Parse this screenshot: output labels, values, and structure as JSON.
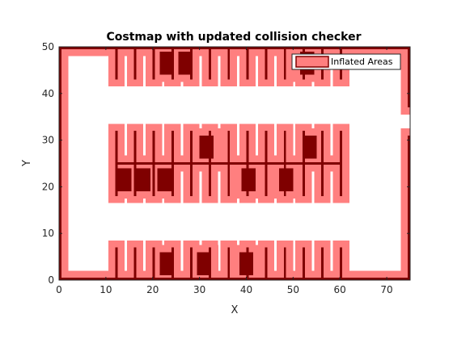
{
  "chart_data": {
    "type": "heatmap",
    "title": "Costmap with updated collision checker",
    "xlabel": "X",
    "ylabel": "Y",
    "xlim": [
      0,
      75
    ],
    "ylim": [
      0,
      50
    ],
    "xticks": [
      0,
      10,
      20,
      30,
      40,
      50,
      60,
      70
    ],
    "yticks": [
      0,
      10,
      20,
      30,
      40,
      50
    ],
    "grid": false,
    "legend": {
      "position": "top-right",
      "entries": [
        "Inflated Areas"
      ]
    },
    "colors": {
      "inflated": "#ff7f7f",
      "occupied": "#7f0000"
    },
    "cell_size": 0.5,
    "occupied_rects": [
      [
        0,
        0,
        75,
        0.5
      ],
      [
        0,
        49.5,
        75,
        50
      ],
      [
        0,
        0,
        0.5,
        17
      ],
      [
        0,
        11,
        0.5,
        50
      ],
      [
        74.5,
        0,
        75,
        31
      ],
      [
        74.5,
        37,
        75,
        50
      ],
      [
        12,
        0,
        12.5,
        7
      ],
      [
        12,
        43,
        12.5,
        50
      ],
      [
        16,
        0,
        16.5,
        7
      ],
      [
        16,
        43,
        16.5,
        50
      ],
      [
        20,
        0,
        20.5,
        7
      ],
      [
        20,
        43,
        20.5,
        50
      ],
      [
        24,
        0,
        24.5,
        7
      ],
      [
        24,
        43,
        24.5,
        50
      ],
      [
        28,
        0,
        28.5,
        7
      ],
      [
        28,
        43,
        28.5,
        50
      ],
      [
        32,
        0,
        32.5,
        7
      ],
      [
        32,
        43,
        32.5,
        50
      ],
      [
        36,
        0,
        36.5,
        7
      ],
      [
        36,
        43,
        36.5,
        50
      ],
      [
        40,
        0,
        40.5,
        7
      ],
      [
        40,
        43,
        40.5,
        50
      ],
      [
        44,
        0,
        44.5,
        7
      ],
      [
        44,
        43,
        44.5,
        50
      ],
      [
        48,
        0,
        48.5,
        7
      ],
      [
        48,
        43,
        48.5,
        50
      ],
      [
        52,
        0,
        52.5,
        7
      ],
      [
        52,
        43,
        52.5,
        50
      ],
      [
        56,
        0,
        56.5,
        7
      ],
      [
        56,
        43,
        56.5,
        50
      ],
      [
        60,
        0,
        60.5,
        7
      ],
      [
        60,
        43,
        60.5,
        50
      ],
      [
        12,
        24.75,
        60.5,
        25.25
      ],
      [
        12,
        18,
        12.5,
        32
      ],
      [
        16,
        18,
        16.5,
        32
      ],
      [
        20,
        18,
        20.5,
        32
      ],
      [
        24,
        18,
        24.5,
        32
      ],
      [
        28,
        18,
        28.5,
        32
      ],
      [
        32,
        18,
        32.5,
        32
      ],
      [
        36,
        18,
        36.5,
        32
      ],
      [
        40,
        18,
        40.5,
        32
      ],
      [
        44,
        18,
        44.5,
        32
      ],
      [
        48,
        18,
        48.5,
        32
      ],
      [
        52,
        18,
        52.5,
        32
      ],
      [
        56,
        18,
        56.5,
        32
      ],
      [
        60,
        18,
        60.5,
        32
      ],
      [
        21.5,
        1,
        24.5,
        6
      ],
      [
        29.5,
        1,
        32.5,
        6
      ],
      [
        38.5,
        1,
        41.5,
        6
      ],
      [
        21.5,
        44,
        24.5,
        49
      ],
      [
        25.5,
        44,
        28.5,
        49
      ],
      [
        51.5,
        44,
        54.5,
        49
      ],
      [
        12.5,
        19,
        15.5,
        24
      ],
      [
        16.5,
        19,
        19.5,
        24
      ],
      [
        21,
        19,
        24,
        24
      ],
      [
        30,
        26,
        33,
        31
      ],
      [
        39,
        19,
        42,
        24
      ],
      [
        47,
        19,
        50,
        24
      ],
      [
        52,
        26,
        55,
        31
      ]
    ],
    "inflation_radius": 1.5
  }
}
